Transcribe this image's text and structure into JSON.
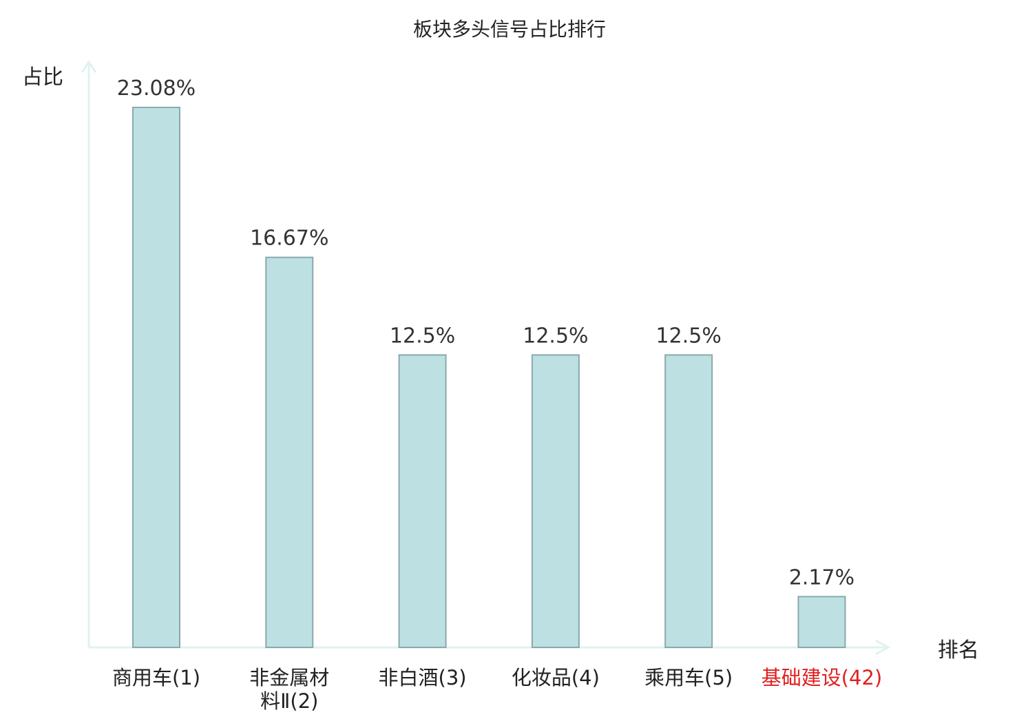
{
  "chart_data": {
    "type": "bar",
    "title": "板块多头信号占比排行",
    "ylabel": "占比",
    "xlabel": "排名",
    "ylim": [
      0,
      25
    ],
    "grid": false,
    "legend": "none",
    "categories": [
      [
        "商用车(1)"
      ],
      [
        "非金属材",
        "料Ⅱ(2)"
      ],
      [
        "非白酒(3)"
      ],
      [
        "化妆品(4)"
      ],
      [
        "乘用车(5)"
      ],
      [
        "基础建设(42)"
      ]
    ],
    "values": [
      23.08,
      16.67,
      12.5,
      12.5,
      12.5,
      2.17
    ],
    "value_labels": [
      "23.08%",
      "16.67%",
      "12.5%",
      "12.5%",
      "12.5%",
      "2.17%"
    ],
    "highlight_index": 5,
    "colors": {
      "bar_fill": "#bde0e3",
      "bar_stroke": "#8aa9ab",
      "axis": "#dff2ef",
      "highlight_label": "#e02020",
      "text": "#222222"
    }
  }
}
